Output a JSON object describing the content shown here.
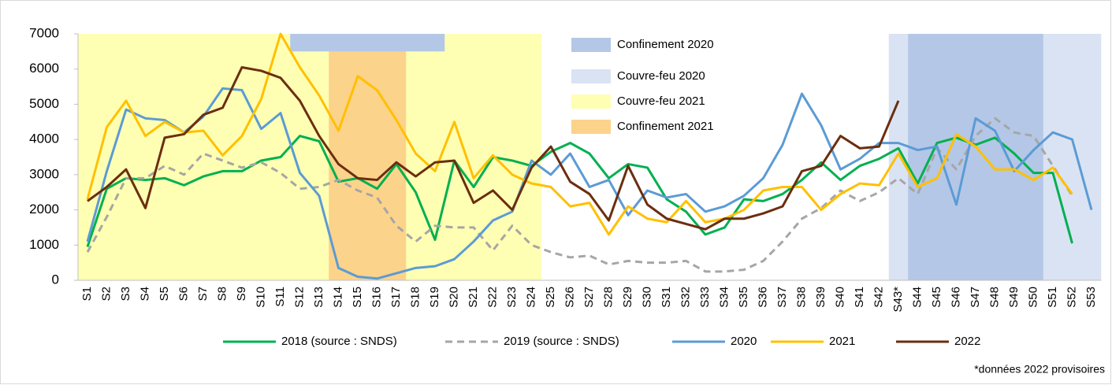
{
  "chart_data": {
    "type": "line",
    "categories": [
      "S1",
      "S2",
      "S3",
      "S4",
      "S5",
      "S6",
      "S7",
      "S8",
      "S9",
      "S10",
      "S11",
      "S12",
      "S13",
      "S14",
      "S15",
      "S16",
      "S17",
      "S18",
      "S19",
      "S20",
      "S21",
      "S22",
      "S23",
      "S24",
      "S25",
      "S26",
      "S27",
      "S28",
      "S29",
      "S30",
      "S31",
      "S32",
      "S33",
      "S34",
      "S35",
      "S36",
      "S37",
      "S38",
      "S39",
      "S40",
      "S41",
      "S42",
      "S43*",
      "S44",
      "S45",
      "S46",
      "S47",
      "S48",
      "S49",
      "S50",
      "S51",
      "S52",
      "S53"
    ],
    "ylim": [
      0,
      7000
    ],
    "yticks": [
      0,
      1000,
      2000,
      3000,
      4000,
      5000,
      6000,
      7000
    ],
    "bands": [
      {
        "name": "Confinement 2020",
        "color": "#b4c7e7",
        "spans": [
          {
            "from": "S12",
            "to": "S19",
            "ymin": 6500
          },
          {
            "from": "S44",
            "to": "S50"
          }
        ]
      },
      {
        "name": "Couvre-feu 2020",
        "color": "#dae3f3",
        "spans": [
          {
            "from": "S43*",
            "to": "S53"
          }
        ]
      },
      {
        "name": "Couvre-feu 2021",
        "color": "#ffffb3",
        "spans": [
          {
            "from": "S1",
            "to": "S24"
          }
        ]
      },
      {
        "name": "Confinement 2021",
        "color": "#fcd38a",
        "spans": [
          {
            "from": "S14",
            "to": "S17"
          }
        ]
      }
    ],
    "series": [
      {
        "name": "2018 (source : SNDS)",
        "color": "#00b050",
        "dashed": false,
        "values": [
          950,
          2600,
          2900,
          2850,
          2900,
          2700,
          2950,
          3100,
          3100,
          3400,
          3500,
          4100,
          3950,
          2800,
          2900,
          2600,
          3300,
          2500,
          1150,
          3400,
          2650,
          3500,
          3400,
          3250,
          3650,
          3900,
          3600,
          2900,
          3300,
          3200,
          2300,
          1950,
          1300,
          1500,
          2300,
          2250,
          2450,
          2850,
          3350,
          2850,
          3250,
          3450,
          3750,
          2750,
          3900,
          4050,
          3850,
          4050,
          3600,
          3050,
          3050,
          1050,
          null
        ]
      },
      {
        "name": "2019 (source : SNDS)",
        "color": "#a6a6a6",
        "dashed": true,
        "values": [
          800,
          1800,
          2900,
          2900,
          3250,
          3000,
          3600,
          3400,
          3200,
          3350,
          3050,
          2600,
          2650,
          2850,
          2550,
          2350,
          1550,
          1100,
          1550,
          1500,
          1500,
          850,
          1550,
          1000,
          800,
          650,
          700,
          450,
          550,
          500,
          500,
          550,
          250,
          250,
          300,
          550,
          1100,
          1750,
          2050,
          2550,
          2250,
          2500,
          2900,
          2450,
          3750,
          3150,
          4100,
          4600,
          4200,
          4100,
          3250,
          2400,
          null
        ]
      },
      {
        "name": "2020",
        "color": "#5b9bd5",
        "dashed": false,
        "values": [
          1100,
          3100,
          4850,
          4600,
          4550,
          4200,
          4650,
          5450,
          5400,
          4300,
          4750,
          3050,
          2400,
          350,
          100,
          50,
          200,
          350,
          400,
          600,
          1100,
          1700,
          1950,
          3400,
          3000,
          3600,
          2650,
          2850,
          1850,
          2550,
          2350,
          2450,
          1950,
          2100,
          2400,
          2900,
          3850,
          5300,
          4400,
          3150,
          3450,
          3900,
          3900,
          3700,
          3800,
          2150,
          4600,
          4250,
          3100,
          3700,
          4200,
          4000,
          2000
        ]
      },
      {
        "name": "2021",
        "color": "#ffc000",
        "dashed": false,
        "values": [
          2300,
          4350,
          5100,
          4100,
          4500,
          4200,
          4250,
          3550,
          4100,
          5150,
          7000,
          6050,
          5250,
          4250,
          5800,
          5400,
          4550,
          3600,
          3100,
          4500,
          2900,
          3550,
          3000,
          2750,
          2650,
          2100,
          2200,
          1300,
          2100,
          1750,
          1650,
          2250,
          1650,
          1750,
          2000,
          2550,
          2650,
          2650,
          2000,
          2450,
          2750,
          2700,
          3600,
          2650,
          2900,
          4150,
          3800,
          3150,
          3150,
          2850,
          3200,
          2450,
          null
        ]
      },
      {
        "name": "2022",
        "color": "#6b2e0f",
        "dashed": false,
        "values": [
          2250,
          2650,
          3150,
          2050,
          4050,
          4150,
          4700,
          4900,
          6050,
          5950,
          5750,
          5100,
          4100,
          3300,
          2900,
          2850,
          3350,
          2950,
          3350,
          3400,
          2200,
          2550,
          2000,
          3200,
          3800,
          2800,
          2450,
          1700,
          3250,
          2150,
          1750,
          1600,
          1450,
          1750,
          1750,
          1900,
          2100,
          3100,
          3250,
          4100,
          3750,
          3800,
          5100,
          null,
          null,
          null,
          null,
          null,
          null,
          null,
          null,
          null,
          null
        ]
      }
    ],
    "footnote": "*données 2022 provisoires"
  }
}
